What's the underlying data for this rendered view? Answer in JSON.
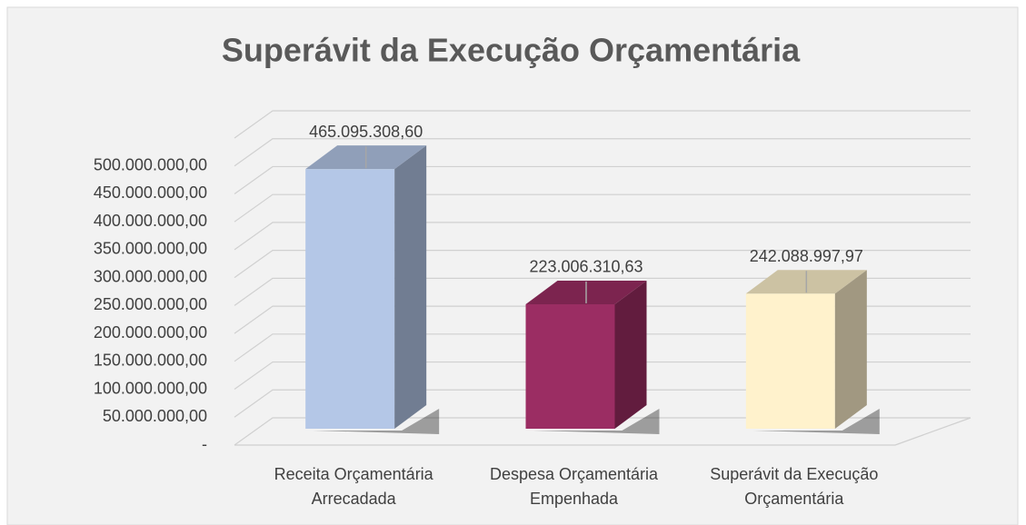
{
  "chart_data": {
    "type": "bar3d",
    "title": "Superávit da Execução Orçamentária",
    "categories": [
      "Receita Orçamentária\nArrecadada",
      "Despesa Orçamentária\nEmpenhada",
      "Superávit da Execução\nOrçamentária"
    ],
    "values": [
      465095308.6,
      223006310.63,
      242088997.97
    ],
    "value_labels": [
      "465.095.308,60",
      "223.006.310,63",
      "242.088.997,97"
    ],
    "colors": [
      "#b4c7e7",
      "#9b2d63",
      "#fff2cc"
    ],
    "ylim": [
      0,
      550000000
    ],
    "yticks": [
      {
        "value": 0,
        "label": "-"
      },
      {
        "value": 50000000,
        "label": "50.000.000,00"
      },
      {
        "value": 100000000,
        "label": "100.000.000,00"
      },
      {
        "value": 150000000,
        "label": "150.000.000,00"
      },
      {
        "value": 200000000,
        "label": "200.000.000,00"
      },
      {
        "value": 250000000,
        "label": "250.000.000,00"
      },
      {
        "value": 300000000,
        "label": "300.000.000,00"
      },
      {
        "value": 350000000,
        "label": "350.000.000,00"
      },
      {
        "value": 400000000,
        "label": "400.000.000,00"
      },
      {
        "value": 450000000,
        "label": "450.000.000,00"
      },
      {
        "value": 500000000,
        "label": "500.000.000,00"
      }
    ],
    "grid": true
  }
}
